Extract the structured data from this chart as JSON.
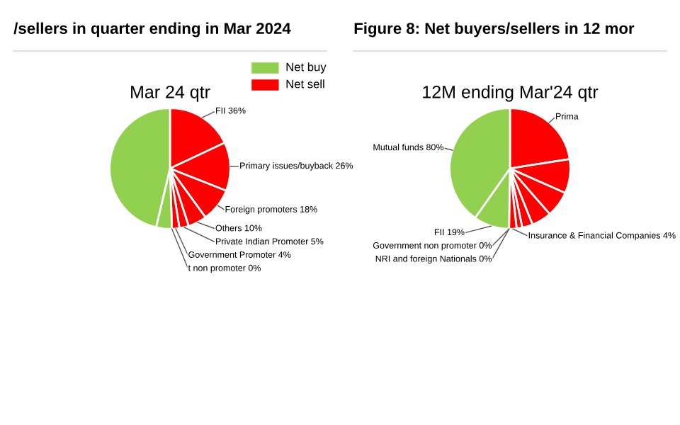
{
  "chart_data": [
    {
      "type": "pie",
      "title": "/sellers in quarter ending in Mar 2024",
      "subtitle": "Mar 24 qtr",
      "categories": [
        "FII 36%",
        "Primary issues/buyback 26%",
        "Foreign promoters 18%",
        "Others 10%",
        "Private Indian Promoter 5%",
        "Government Promoter 4%",
        "t non promoter 0%",
        null,
        null
      ],
      "values": [
        18,
        13,
        9,
        5,
        2.5,
        2,
        0,
        4.2,
        46.3
      ],
      "colors": [
        "#ff0000",
        "#ff0000",
        "#ff0000",
        "#ff0000",
        "#ff0000",
        "#ff0000",
        "#92d050",
        "#92d050",
        "#92d050"
      ],
      "annotations": [
        "Net buy",
        "Net sell"
      ]
    },
    {
      "type": "pie",
      "title": "Figure 8: Net buyers/sellers in 12 mor",
      "subtitle": "12M ending Mar'24 qtr",
      "categories": [
        "Prima",
        null,
        null,
        null,
        null,
        null,
        "Insurance & Financial Companies 4%",
        "Government non promoter 0%",
        "NRI and foreign Nationals 0%",
        "FII 19%",
        "Mutual funds 80%"
      ],
      "values": [
        22.4,
        9.1,
        6.9,
        5.3,
        2.8,
        1.5,
        2,
        0,
        0,
        9.5,
        40
      ],
      "colors": [
        "#ff0000",
        "#ff0000",
        "#ff0000",
        "#ff0000",
        "#ff0000",
        "#ff0000",
        "#ff0000",
        "#92d050",
        "#92d050",
        "#92d050",
        "#92d050"
      ]
    }
  ]
}
